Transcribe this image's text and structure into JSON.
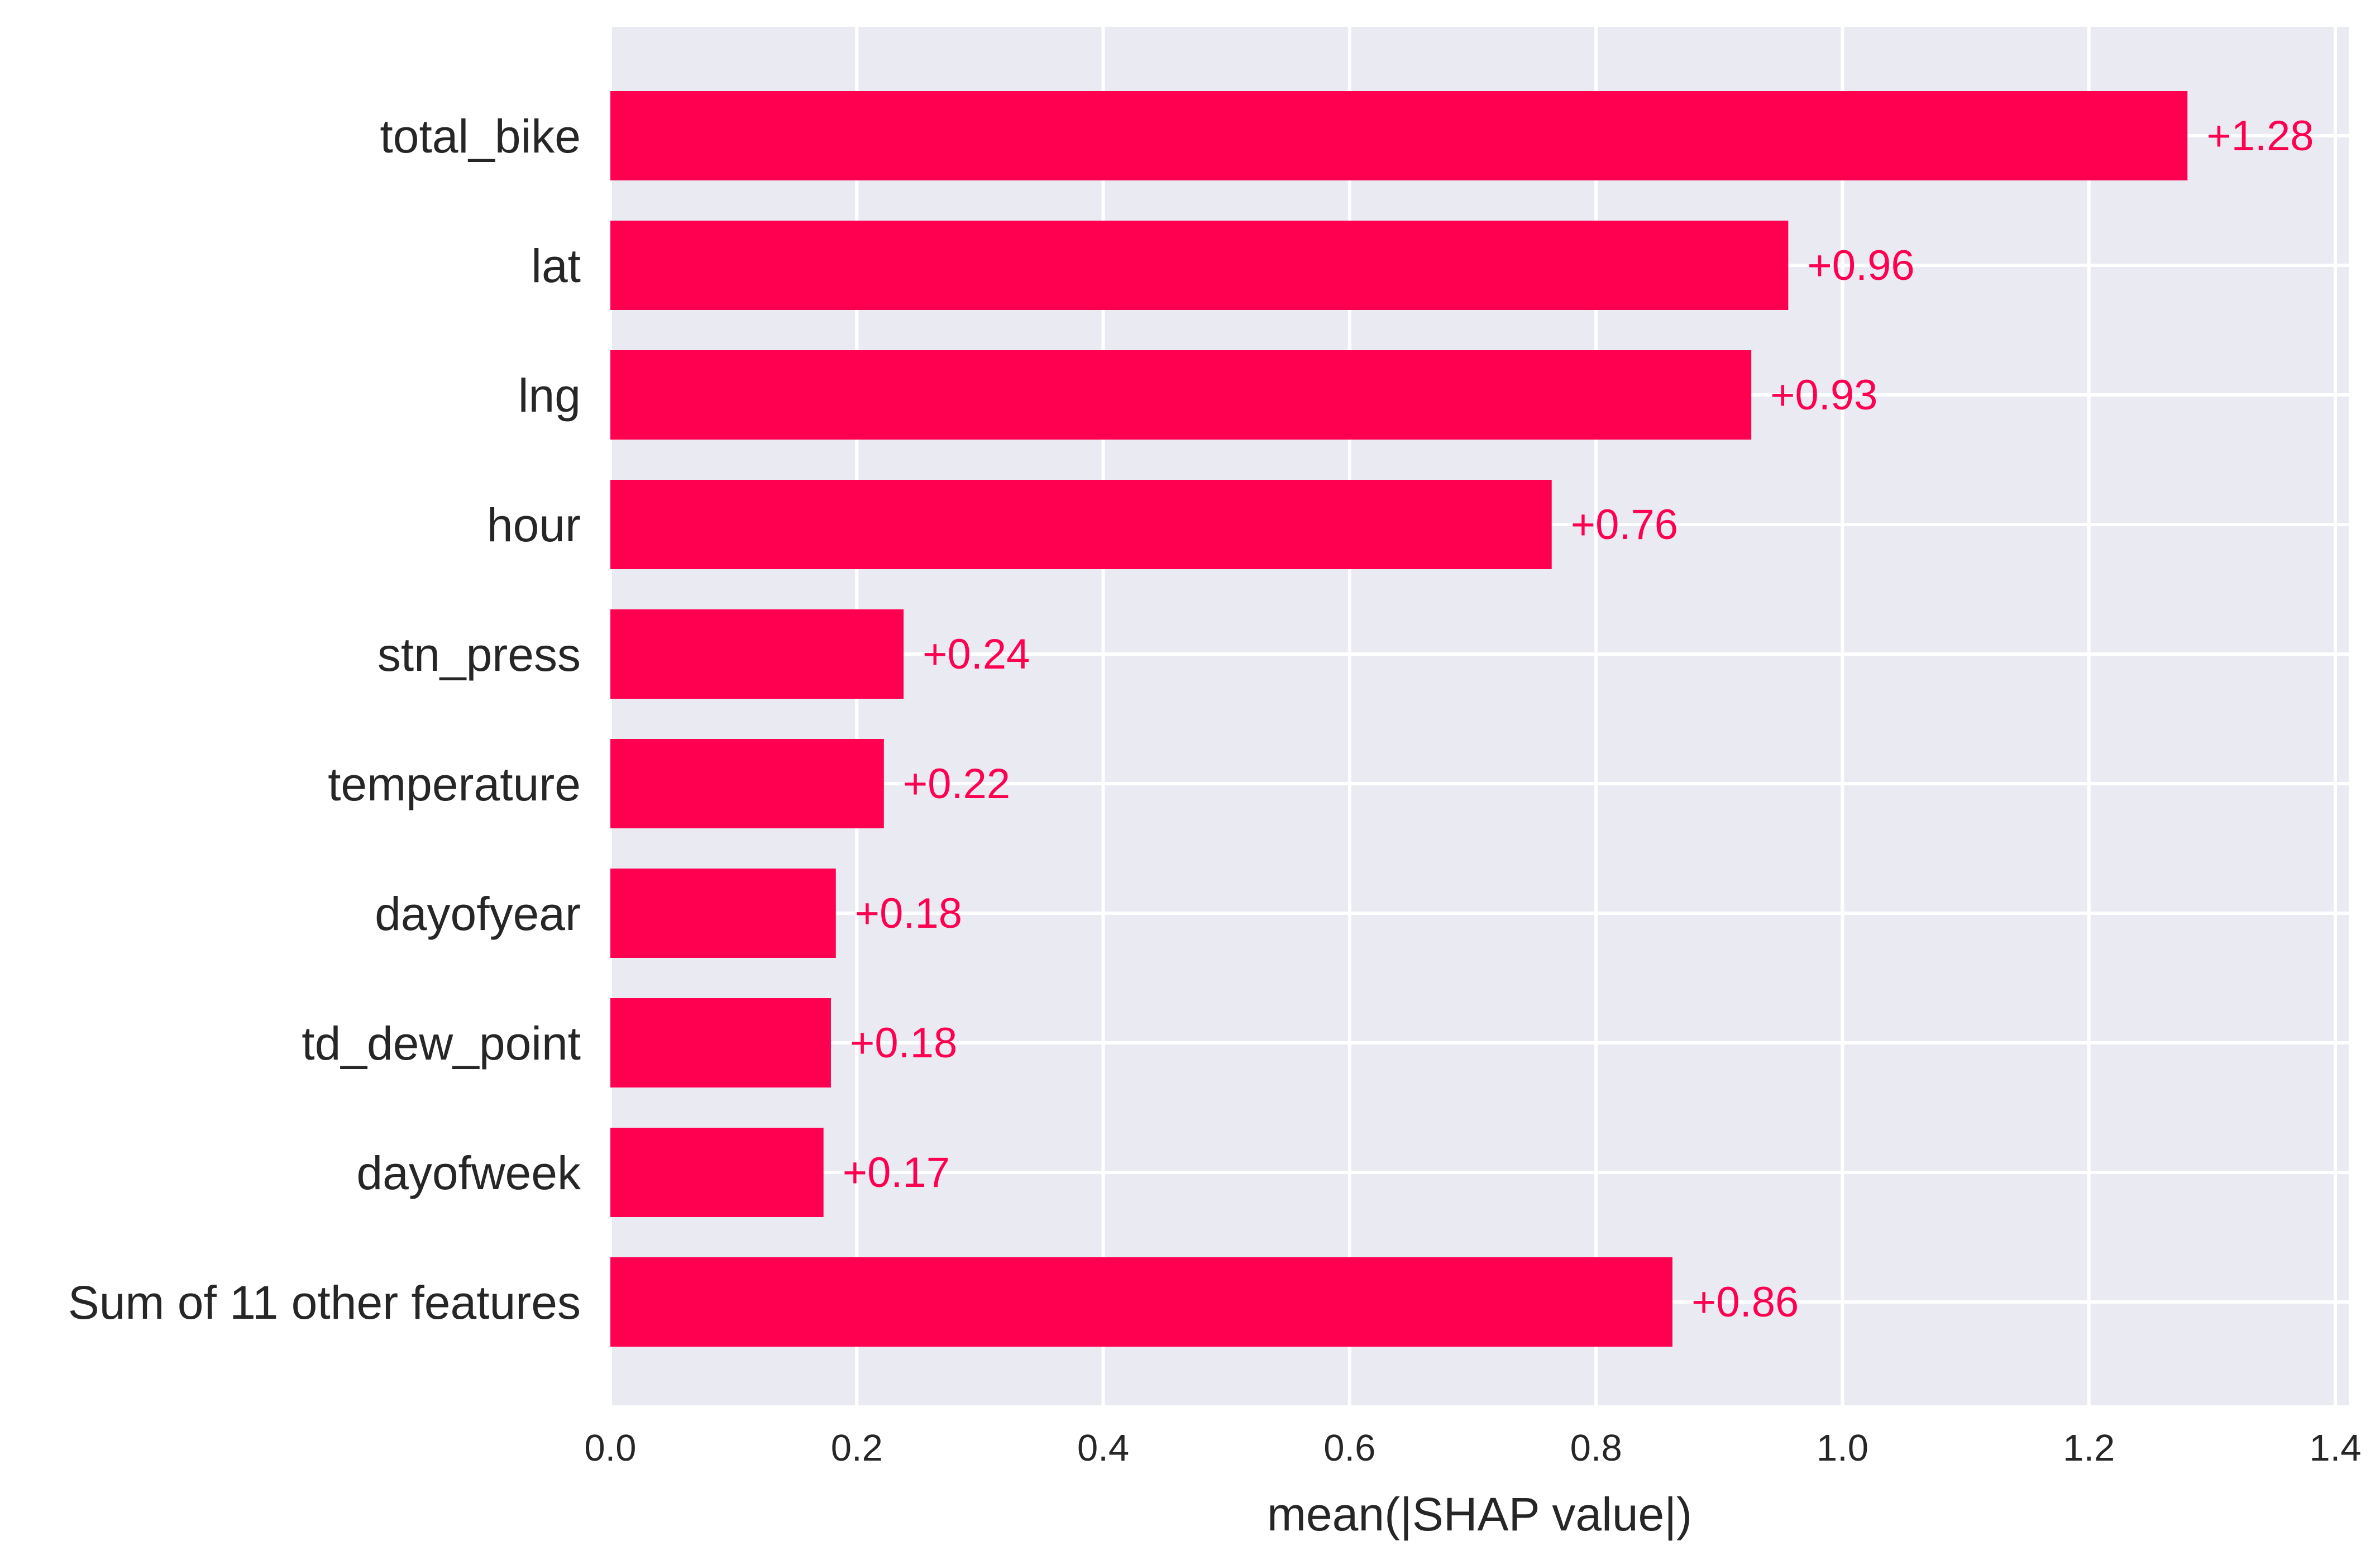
{
  "chart_data": {
    "type": "bar",
    "orientation": "horizontal",
    "categories": [
      "total_bike",
      "lat",
      "lng",
      "hour",
      "stn_press",
      "temperature",
      "dayofyear",
      "td_dew_point",
      "dayofweek",
      "Sum of 11 other features"
    ],
    "values": [
      1.28,
      0.956,
      0.926,
      0.764,
      0.238,
      0.222,
      0.183,
      0.179,
      0.173,
      0.862
    ],
    "data_labels": [
      "+1.28",
      "+0.96",
      "+0.93",
      "+0.76",
      "+0.24",
      "+0.22",
      "+0.18",
      "+0.18",
      "+0.17",
      "+0.86"
    ],
    "xlabel": "mean(|SHAP value|)",
    "ylabel": "",
    "title": "",
    "xlim": [
      0.0,
      1.41
    ],
    "xticks": [
      0.0,
      0.2,
      0.4,
      0.6,
      0.8,
      1.0,
      1.2,
      1.4
    ],
    "xtick_labels": [
      "0.0",
      "0.2",
      "0.4",
      "0.6",
      "0.8",
      "1.0",
      "1.2",
      "1.4"
    ],
    "grid": true,
    "bar_color": "#ff0051",
    "label_color": "#ff0051",
    "background_color": "#eaeaf2",
    "grid_color": "#ffffff"
  }
}
